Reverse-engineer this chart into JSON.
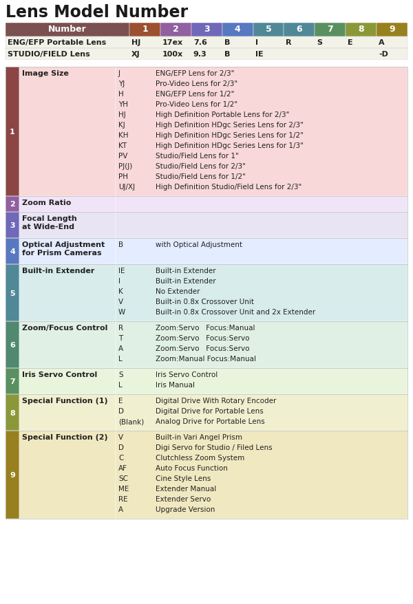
{
  "title": "Lens Model Number",
  "bg_color": "#ffffff",
  "header": {
    "num_bg": "#7A5050",
    "num_text": "Number",
    "col_names": [
      "1",
      "2",
      "3",
      "4",
      "5",
      "6",
      "7",
      "8",
      "9"
    ],
    "col_colors": [
      "#9B5030",
      "#9060A0",
      "#7068B8",
      "#5878C0",
      "#508898",
      "#508898",
      "#5A9060",
      "#8A9838",
      "#988020"
    ]
  },
  "example_rows": [
    {
      "label": "ENG/EFP Portable Lens",
      "vals": [
        "HJ",
        "17ex",
        "7.6",
        "B",
        "I",
        "R",
        "S",
        "E",
        "A"
      ]
    },
    {
      "label": "STUDIO/FIELD Lens",
      "vals": [
        "XJ",
        "100x",
        "9.3",
        "B",
        "IE",
        "",
        "",
        "",
        "-D"
      ]
    }
  ],
  "sections": [
    {
      "num": "1",
      "num_bg": "#8B4545",
      "row_bg": "#F8D8D8",
      "title": "Image Size",
      "items": [
        {
          "code": "J",
          "desc": "ENG/EFP Lens for 2/3\""
        },
        {
          "code": "YJ",
          "desc": "Pro-Video Lens for 2/3\""
        },
        {
          "code": "H",
          "desc": "ENG/EFP Lens for 1/2\""
        },
        {
          "code": "YH",
          "desc": "Pro-Video Lens for 1/2\""
        },
        {
          "code": "HJ",
          "desc": "High Definition Portable Lens for 2/3\""
        },
        {
          "code": "KJ",
          "desc": "High Definition HDgc Series Lens for 2/3\""
        },
        {
          "code": "KH",
          "desc": "High Definition HDgc Series Lens for 1/2\""
        },
        {
          "code": "KT",
          "desc": "High Definition HDgc Series Lens for 1/3\""
        },
        {
          "code": "PV",
          "desc": "Studio/Field Lens for 1\""
        },
        {
          "code": "PJ(J)",
          "desc": "Studio/Field Lens for 2/3\""
        },
        {
          "code": "PH",
          "desc": "Studio/Field Lens for 1/2\""
        },
        {
          "code": "UJ/XJ",
          "desc": "High Definition Studio/Field Lens for 2/3\""
        }
      ]
    },
    {
      "num": "2",
      "num_bg": "#9060A0",
      "row_bg": "#F0E4F8",
      "title": "Zoom Ratio",
      "items": []
    },
    {
      "num": "3",
      "num_bg": "#7068B8",
      "row_bg": "#E8E4F4",
      "title": "Focal Length\nat Wide-End",
      "items": []
    },
    {
      "num": "4",
      "num_bg": "#5878C0",
      "row_bg": "#E4ECFF",
      "title": "Optical Adjustment\nfor Prism Cameras",
      "items": [
        {
          "code": "B",
          "desc": "with Optical Adjustment"
        }
      ]
    },
    {
      "num": "5",
      "num_bg": "#508898",
      "row_bg": "#D8ECEC",
      "title": "Built-in Extender",
      "items": [
        {
          "code": "IE",
          "desc": "Built-in Extender"
        },
        {
          "code": "I",
          "desc": "Built-in Extender"
        },
        {
          "code": "K",
          "desc": "No Extender"
        },
        {
          "code": "V",
          "desc": "Built-in 0.8x Crossover Unit"
        },
        {
          "code": "W",
          "desc": "Built-in 0.8x Crossover Unit and 2x Extender"
        }
      ]
    },
    {
      "num": "6",
      "num_bg": "#508870",
      "row_bg": "#E0F0E4",
      "title": "Zoom/Focus Control",
      "items": [
        {
          "code": "R",
          "desc": "Zoom:Servo   Focus:Manual"
        },
        {
          "code": "T",
          "desc": "Zoom:Servo   Focus:Servo"
        },
        {
          "code": "A",
          "desc": "Zoom:Servo   Focus:Servo"
        },
        {
          "code": "L",
          "desc": "Zoom:Manual Focus:Manual"
        }
      ]
    },
    {
      "num": "7",
      "num_bg": "#5A9060",
      "row_bg": "#E8F4DC",
      "title": "Iris Servo Control",
      "items": [
        {
          "code": "S",
          "desc": "Iris Servo Control"
        },
        {
          "code": "L",
          "desc": "Iris Manual"
        }
      ]
    },
    {
      "num": "8",
      "num_bg": "#8A9838",
      "row_bg": "#F0F0D0",
      "title": "Special Function (1)",
      "items": [
        {
          "code": "E",
          "desc": "Digital Drive With Rotary Encoder"
        },
        {
          "code": "D",
          "desc": "Digital Drive for Portable Lens"
        },
        {
          "code": "(Blank)",
          "desc": "Analog Drive for Portable Lens"
        }
      ]
    },
    {
      "num": "9",
      "num_bg": "#988020",
      "row_bg": "#F0E8C0",
      "title": "Special Function (2)",
      "items": [
        {
          "code": "V",
          "desc": "Built-in Vari Angel Prism"
        },
        {
          "code": "D",
          "desc": "Digi Servo for Studio / Filed Lens"
        },
        {
          "code": "C",
          "desc": "Clutchless Zoom System"
        },
        {
          "code": "AF",
          "desc": "Auto Focus Function"
        },
        {
          "code": "SC",
          "desc": "Cine Style Lens"
        },
        {
          "code": "ME",
          "desc": "Extender Manual"
        },
        {
          "code": "RE",
          "desc": "Extender Servo"
        },
        {
          "code": "A",
          "desc": "Upgrade Version"
        }
      ]
    }
  ]
}
